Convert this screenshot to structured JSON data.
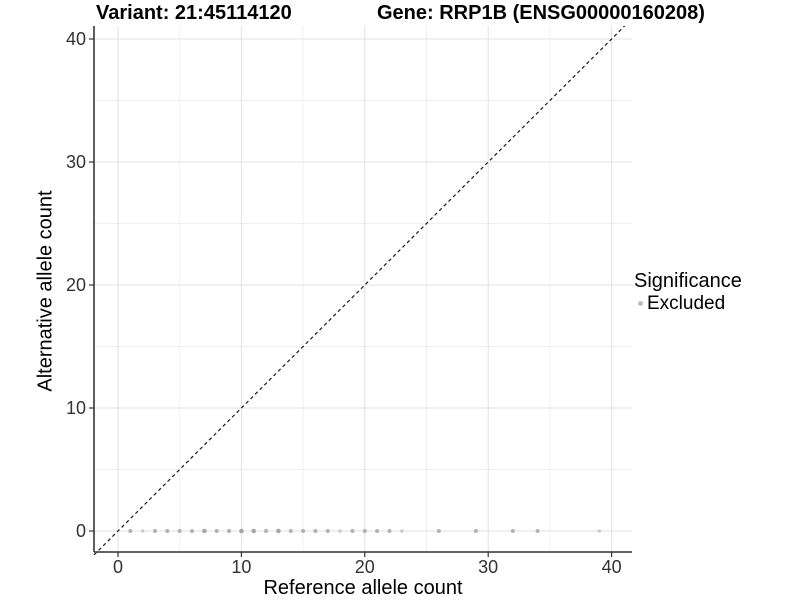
{
  "titles": {
    "variant": "Variant: 21:45114120",
    "gene": "Gene: RRP1B (ENSG00000160208)"
  },
  "legend": {
    "title": "Significance",
    "items": [
      {
        "label": "Excluded",
        "color": "#bdbdbd"
      }
    ]
  },
  "chart_data": {
    "type": "scatter",
    "title_left": "Variant: 21:45114120",
    "title_right": "Gene: RRP1B (ENSG00000160208)",
    "xlabel": "Reference allele count",
    "ylabel": "Alternative allele count",
    "xlim": [
      -2,
      41.7
    ],
    "ylim": [
      -2,
      41.1
    ],
    "x_major_ticks": [
      0,
      10,
      20,
      30,
      40
    ],
    "y_major_ticks": [
      0,
      10,
      20,
      30,
      40
    ],
    "x_minor_gridlines": [
      5,
      15,
      25,
      35
    ],
    "y_minor_gridlines": [
      5,
      15,
      25,
      35
    ],
    "grid": true,
    "legend_position": "right",
    "identity_line": {
      "style": "dashed",
      "equation": "y = x",
      "color": "#1a1a1a"
    },
    "series": [
      {
        "name": "Excluded",
        "marker": "circle",
        "color": "#aeaeae",
        "color_light": "#c9c9c9",
        "color_dark": "#a2a2a2",
        "points": [
          [
            1,
            0
          ],
          [
            2,
            0
          ],
          [
            3,
            0
          ],
          [
            4,
            0
          ],
          [
            5,
            0
          ],
          [
            6,
            0
          ],
          [
            7,
            0
          ],
          [
            8,
            0
          ],
          [
            9,
            0
          ],
          [
            10,
            0
          ],
          [
            11,
            0
          ],
          [
            12,
            0
          ],
          [
            13,
            0
          ],
          [
            14,
            0
          ],
          [
            15,
            0
          ],
          [
            16,
            0
          ],
          [
            17,
            0
          ],
          [
            18,
            0
          ],
          [
            19,
            0
          ],
          [
            20,
            0
          ],
          [
            21,
            0
          ],
          [
            22,
            0
          ],
          [
            23,
            0
          ],
          [
            26,
            0
          ],
          [
            29,
            0
          ],
          [
            32,
            0
          ],
          [
            34,
            0
          ],
          [
            39,
            0
          ]
        ],
        "shade_light_x": [
          2,
          18,
          23,
          39
        ],
        "shade_dark_x": [
          7,
          10,
          11,
          13
        ]
      }
    ]
  }
}
